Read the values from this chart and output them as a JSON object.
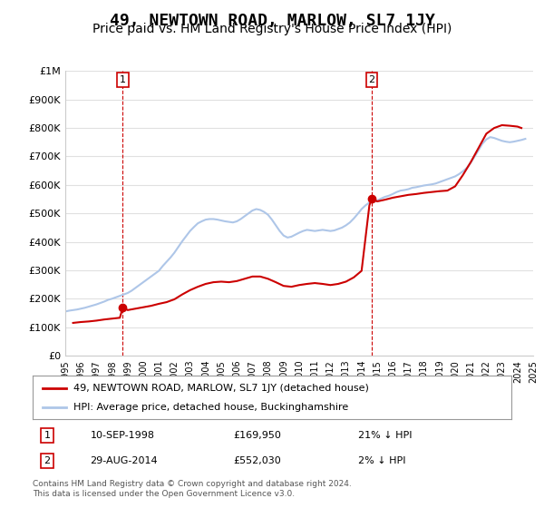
{
  "title": "49, NEWTOWN ROAD, MARLOW, SL7 1JY",
  "subtitle": "Price paid vs. HM Land Registry's House Price Index (HPI)",
  "title_fontsize": 13,
  "subtitle_fontsize": 10,
  "ylabel": "",
  "background_color": "#ffffff",
  "plot_bg_color": "#ffffff",
  "grid_color": "#e0e0e0",
  "sale1_date_x": 1998.69,
  "sale1_price": 169950,
  "sale2_date_x": 2014.66,
  "sale2_price": 552030,
  "legend_line1": "49, NEWTOWN ROAD, MARLOW, SL7 1JY (detached house)",
  "legend_line2": "HPI: Average price, detached house, Buckinghamshire",
  "annotation1_label": "10-SEP-1998",
  "annotation1_price": "£169,950",
  "annotation1_hpi": "21% ↓ HPI",
  "annotation2_label": "29-AUG-2014",
  "annotation2_price": "£552,030",
  "annotation2_hpi": "2% ↓ HPI",
  "footer": "Contains HM Land Registry data © Crown copyright and database right 2024.\nThis data is licensed under the Open Government Licence v3.0.",
  "hpi_line_color": "#aec6e8",
  "price_line_color": "#cc0000",
  "sale_dot_color": "#cc0000",
  "vline_color": "#cc0000",
  "hpi_x": [
    1995,
    1995.25,
    1995.5,
    1995.75,
    1996,
    1996.25,
    1996.5,
    1996.75,
    1997,
    1997.25,
    1997.5,
    1997.75,
    1998,
    1998.25,
    1998.5,
    1998.75,
    1999,
    1999.25,
    1999.5,
    1999.75,
    2000,
    2000.25,
    2000.5,
    2000.75,
    2001,
    2001.25,
    2001.5,
    2001.75,
    2002,
    2002.25,
    2002.5,
    2002.75,
    2003,
    2003.25,
    2003.5,
    2003.75,
    2004,
    2004.25,
    2004.5,
    2004.75,
    2005,
    2005.25,
    2005.5,
    2005.75,
    2006,
    2006.25,
    2006.5,
    2006.75,
    2007,
    2007.25,
    2007.5,
    2007.75,
    2008,
    2008.25,
    2008.5,
    2008.75,
    2009,
    2009.25,
    2009.5,
    2009.75,
    2010,
    2010.25,
    2010.5,
    2010.75,
    2011,
    2011.25,
    2011.5,
    2011.75,
    2012,
    2012.25,
    2012.5,
    2012.75,
    2013,
    2013.25,
    2013.5,
    2013.75,
    2014,
    2014.25,
    2014.5,
    2014.75,
    2015,
    2015.25,
    2015.5,
    2015.75,
    2016,
    2016.25,
    2016.5,
    2016.75,
    2017,
    2017.25,
    2017.5,
    2017.75,
    2018,
    2018.25,
    2018.5,
    2018.75,
    2019,
    2019.25,
    2019.5,
    2019.75,
    2020,
    2020.25,
    2020.5,
    2020.75,
    2021,
    2021.25,
    2021.5,
    2021.75,
    2022,
    2022.25,
    2022.5,
    2022.75,
    2023,
    2023.25,
    2023.5,
    2023.75,
    2024,
    2024.25,
    2024.5
  ],
  "hpi_y": [
    155000,
    158000,
    160000,
    162000,
    165000,
    168000,
    172000,
    176000,
    180000,
    185000,
    190000,
    196000,
    200000,
    205000,
    210000,
    215000,
    220000,
    228000,
    238000,
    248000,
    258000,
    268000,
    278000,
    288000,
    298000,
    315000,
    330000,
    345000,
    362000,
    382000,
    402000,
    420000,
    438000,
    452000,
    465000,
    472000,
    478000,
    480000,
    480000,
    478000,
    475000,
    472000,
    470000,
    468000,
    472000,
    480000,
    490000,
    500000,
    510000,
    515000,
    512000,
    505000,
    495000,
    478000,
    458000,
    438000,
    422000,
    415000,
    418000,
    425000,
    432000,
    438000,
    442000,
    440000,
    438000,
    440000,
    442000,
    440000,
    438000,
    440000,
    445000,
    450000,
    458000,
    468000,
    482000,
    498000,
    515000,
    528000,
    538000,
    542000,
    545000,
    552000,
    558000,
    562000,
    568000,
    575000,
    580000,
    582000,
    585000,
    590000,
    592000,
    595000,
    598000,
    600000,
    602000,
    605000,
    610000,
    615000,
    620000,
    625000,
    630000,
    638000,
    648000,
    660000,
    678000,
    700000,
    722000,
    745000,
    760000,
    768000,
    765000,
    760000,
    755000,
    752000,
    750000,
    752000,
    755000,
    758000,
    762000
  ],
  "price_paid_x": [
    1995.5,
    1996.0,
    1996.5,
    1997.0,
    1997.5,
    1998.0,
    1998.5,
    1998.69,
    1999.0,
    1999.5,
    2000.0,
    2000.5,
    2001.0,
    2001.5,
    2002.0,
    2002.5,
    2003.0,
    2003.5,
    2004.0,
    2004.5,
    2005.0,
    2005.5,
    2006.0,
    2006.5,
    2007.0,
    2007.5,
    2008.0,
    2008.5,
    2009.0,
    2009.5,
    2010.0,
    2010.5,
    2011.0,
    2011.5,
    2012.0,
    2012.5,
    2013.0,
    2013.5,
    2014.0,
    2014.5,
    2014.66,
    2015.0,
    2015.5,
    2016.0,
    2016.5,
    2017.0,
    2017.5,
    2018.0,
    2018.5,
    2019.0,
    2019.5,
    2020.0,
    2020.5,
    2021.0,
    2021.5,
    2022.0,
    2022.5,
    2023.0,
    2023.5,
    2024.0,
    2024.25
  ],
  "price_paid_y": [
    115000,
    118000,
    120000,
    123000,
    127000,
    130000,
    133000,
    169950,
    160000,
    165000,
    170000,
    175000,
    182000,
    188000,
    198000,
    215000,
    230000,
    242000,
    252000,
    258000,
    260000,
    258000,
    262000,
    270000,
    278000,
    278000,
    270000,
    258000,
    245000,
    242000,
    248000,
    252000,
    255000,
    252000,
    248000,
    252000,
    260000,
    275000,
    298000,
    528000,
    552030,
    542000,
    548000,
    555000,
    560000,
    565000,
    568000,
    572000,
    575000,
    578000,
    580000,
    595000,
    635000,
    680000,
    730000,
    780000,
    800000,
    810000,
    808000,
    805000,
    800000
  ],
  "xlim": [
    1995,
    2025
  ],
  "ylim": [
    0,
    1000000
  ],
  "yticks": [
    0,
    100000,
    200000,
    300000,
    400000,
    500000,
    600000,
    700000,
    800000,
    900000,
    1000000
  ],
  "ytick_labels": [
    "£0",
    "£100K",
    "£200K",
    "£300K",
    "£400K",
    "£500K",
    "£600K",
    "£700K",
    "£800K",
    "£900K",
    "£1M"
  ],
  "xticks": [
    1995,
    1996,
    1997,
    1998,
    1999,
    2000,
    2001,
    2002,
    2003,
    2004,
    2005,
    2006,
    2007,
    2008,
    2009,
    2010,
    2011,
    2012,
    2013,
    2014,
    2015,
    2016,
    2017,
    2018,
    2019,
    2020,
    2021,
    2022,
    2023,
    2024,
    2025
  ]
}
